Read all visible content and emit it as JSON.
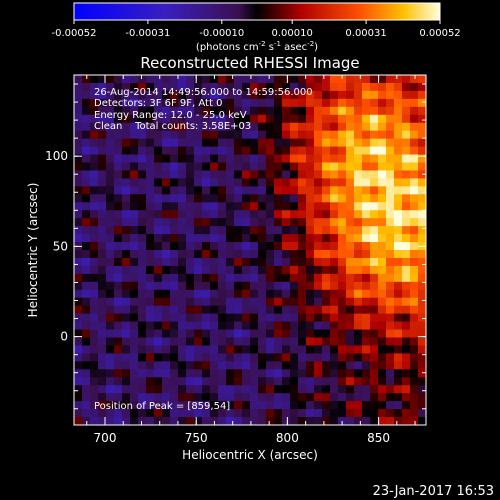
{
  "chart_data": {
    "type": "heatmap",
    "title": "Reconstructed RHESSI Image",
    "xlabel": "Heliocentric X (arcsec)",
    "ylabel": "Heliocentric Y (arcsec)",
    "xlim": [
      683,
      876
    ],
    "ylim": [
      -49,
      145
    ],
    "x_ticks": [
      700,
      750,
      800,
      850
    ],
    "y_ticks": [
      0,
      50,
      100
    ],
    "colorbar": {
      "ticks": [
        "-0.00052",
        "-0.00031",
        "-0.00010",
        "0.00010",
        "0.00031",
        "0.00052"
      ],
      "tick_values": [
        -0.00052,
        -0.00031,
        -0.0001,
        0.0001,
        0.00031,
        0.00052
      ],
      "range": [
        -0.00052,
        0.00052
      ],
      "units_prefix": "(photons cm",
      "units_exp1": "-2",
      "units_mid": " s",
      "units_exp2": "-1",
      "units_mid2": " asec",
      "units_exp3": "-2",
      "units_suffix": ")"
    },
    "annotations": [
      "26-Aug-2014 14:49:56.000 to 14:59:56.000",
      "Detectors: 3F 6F 9F, Att 0",
      "Energy Range: 12.0 - 25.0 keV",
      "Clean    Total counts: 3.58E+03"
    ],
    "peak_label": "Position of Peak = [859,54]",
    "peak": [
      859,
      54
    ],
    "grid": false
  },
  "timestamp": "23-Jan-2017 16:53"
}
